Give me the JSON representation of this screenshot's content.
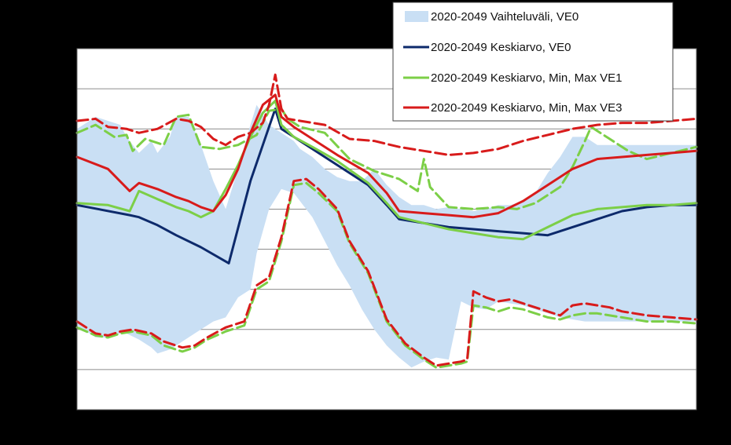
{
  "chart_data": {
    "type": "line",
    "title": "",
    "xlabel": "",
    "ylabel": "",
    "x_range": [
      0,
      100
    ],
    "ylim": [
      0,
      9
    ],
    "yticks": [
      0,
      1,
      2,
      3,
      4,
      5,
      6,
      7,
      8,
      9
    ],
    "grid": "horizontal",
    "legend_position": "top-right",
    "band": {
      "name": "2020-2049 Vaihteluväli, VE0",
      "color": "#c9dff4",
      "x": [
        0,
        3,
        5,
        7,
        8,
        10,
        12,
        13,
        15,
        16,
        18,
        20,
        22,
        24,
        26,
        28,
        29,
        31,
        33,
        35,
        36,
        38,
        40,
        42,
        44,
        46,
        48,
        50,
        52,
        54,
        56,
        58,
        60,
        62,
        64,
        66,
        68,
        70,
        72,
        74,
        76,
        78,
        80,
        82,
        84,
        86,
        88,
        90,
        92,
        94,
        96,
        98,
        100
      ],
      "upper": [
        7.0,
        7.3,
        7.2,
        7.1,
        6.8,
        6.4,
        6.7,
        6.4,
        6.8,
        7.3,
        7.3,
        6.6,
        5.7,
        5.0,
        6.0,
        7.1,
        7.6,
        7.1,
        6.9,
        6.7,
        6.5,
        6.3,
        6.0,
        5.8,
        5.7,
        5.7,
        6.0,
        5.6,
        5.3,
        5.1,
        5.1,
        5.0,
        5.05,
        5.0,
        4.95,
        5.0,
        5.1,
        5.1,
        5.2,
        5.4,
        5.9,
        6.3,
        6.8,
        6.8,
        6.6,
        6.6,
        6.6,
        6.6,
        6.6,
        6.6,
        6.6,
        6.6,
        6.6
      ],
      "lower": [
        2.1,
        1.8,
        1.8,
        1.9,
        1.9,
        1.75,
        1.55,
        1.4,
        1.5,
        1.6,
        1.8,
        2.0,
        2.2,
        2.3,
        2.8,
        3.0,
        3.9,
        5.0,
        5.5,
        5.4,
        5.2,
        4.8,
        4.2,
        3.6,
        3.1,
        2.5,
        2.0,
        1.6,
        1.3,
        1.05,
        1.2,
        1.3,
        1.25,
        2.7,
        2.55,
        2.5,
        2.7,
        2.65,
        2.6,
        2.5,
        2.4,
        2.3,
        2.25,
        2.2,
        2.2,
        2.2,
        2.2,
        2.2,
        2.2,
        2.2,
        2.2,
        2.2,
        2.2
      ]
    },
    "series": [
      {
        "name": "2020-2049 Keskiarvo, VE0",
        "color": "#0d2a6b",
        "width": 3,
        "dash": "",
        "x": [
          0,
          8.5,
          10,
          13,
          16,
          20,
          24.5,
          28,
          30,
          32,
          33,
          35,
          38,
          42,
          47,
          50,
          52,
          56,
          60,
          64,
          68,
          72,
          76,
          80,
          84,
          88,
          92,
          96,
          100
        ],
        "y": [
          5.1,
          4.85,
          4.8,
          4.6,
          4.35,
          4.05,
          3.65,
          5.7,
          6.6,
          7.5,
          7.0,
          6.8,
          6.5,
          6.1,
          5.6,
          5.1,
          4.75,
          4.65,
          4.55,
          4.5,
          4.45,
          4.4,
          4.35,
          4.55,
          4.75,
          4.95,
          5.05,
          5.1,
          5.1
        ]
      },
      {
        "name": "2020-2049 Keskiarvo, Min, Max VE1",
        "color": "#7ccf47",
        "width": 3,
        "dash": "",
        "x": [
          0,
          5,
          8.5,
          10,
          13,
          16,
          18,
          20,
          22,
          24,
          26,
          28,
          30,
          32,
          33,
          35,
          38,
          42,
          47,
          50,
          52,
          56,
          60,
          64,
          68,
          72,
          76,
          80,
          84,
          88,
          92,
          96,
          100
        ],
        "y": [
          5.15,
          5.1,
          4.95,
          5.45,
          5.25,
          5.05,
          4.95,
          4.8,
          4.95,
          5.5,
          6.1,
          6.8,
          7.4,
          7.7,
          7.1,
          6.8,
          6.55,
          6.2,
          5.65,
          5.15,
          4.8,
          4.65,
          4.5,
          4.4,
          4.3,
          4.25,
          4.55,
          4.85,
          5.0,
          5.05,
          5.1,
          5.1,
          5.15
        ]
      },
      {
        "name": "2020-2049 Keskiarvo, Min, Max VE1 (max)",
        "color": "#7ccf47",
        "width": 3,
        "dash": "14,6",
        "x": [
          0,
          3,
          6,
          8,
          9,
          11,
          14,
          16,
          18,
          20,
          23,
          26,
          29,
          31,
          33,
          34,
          36,
          40,
          44,
          48,
          52,
          55,
          56,
          57,
          60,
          64,
          68,
          71,
          74,
          78,
          80,
          82,
          83,
          86,
          89,
          92,
          96,
          100
        ],
        "y": [
          6.9,
          7.1,
          6.8,
          6.85,
          6.45,
          6.75,
          6.6,
          7.3,
          7.35,
          6.55,
          6.5,
          6.6,
          6.85,
          7.45,
          7.5,
          7.25,
          7.05,
          6.9,
          6.25,
          5.95,
          5.75,
          5.45,
          6.25,
          5.55,
          5.05,
          5.0,
          5.05,
          5.0,
          5.15,
          5.55,
          6.05,
          6.7,
          7.05,
          6.75,
          6.45,
          6.25,
          6.4,
          6.55
        ]
      },
      {
        "name": "2020-2049 Keskiarvo, Min, Max VE1 (min)",
        "color": "#7ccf47",
        "width": 3,
        "dash": "14,6",
        "x": [
          0,
          3,
          5,
          7,
          9,
          12,
          14,
          17,
          19,
          21,
          24,
          27,
          29,
          31,
          33,
          35,
          37,
          39,
          42,
          44,
          47,
          50,
          53,
          56,
          58,
          60,
          62,
          63,
          64,
          66,
          68,
          70,
          72,
          74,
          76,
          78,
          80,
          82,
          84,
          86,
          88,
          90,
          92,
          96,
          100
        ],
        "y": [
          2.05,
          1.85,
          1.8,
          1.9,
          1.95,
          1.85,
          1.6,
          1.45,
          1.55,
          1.75,
          1.95,
          2.1,
          3.0,
          3.2,
          4.2,
          5.6,
          5.65,
          5.4,
          4.95,
          4.15,
          3.4,
          2.2,
          1.6,
          1.25,
          1.05,
          1.1,
          1.15,
          1.2,
          2.6,
          2.55,
          2.45,
          2.55,
          2.5,
          2.4,
          2.3,
          2.25,
          2.35,
          2.4,
          2.4,
          2.35,
          2.3,
          2.25,
          2.2,
          2.2,
          2.15
        ]
      },
      {
        "name": "2020-2049 Keskiarvo, Min, Max VE3",
        "color": "#d81b1b",
        "width": 3,
        "dash": "",
        "x": [
          0,
          5,
          8.5,
          10,
          13,
          16,
          18,
          20,
          22,
          24,
          26,
          28,
          30,
          32,
          33,
          35,
          38,
          42,
          47,
          50,
          52,
          56,
          60,
          64,
          68,
          72,
          76,
          80,
          84,
          88,
          92,
          96,
          100
        ],
        "y": [
          6.3,
          6.0,
          5.45,
          5.65,
          5.5,
          5.3,
          5.2,
          5.05,
          4.95,
          5.35,
          6.0,
          6.9,
          7.6,
          7.85,
          7.3,
          7.05,
          6.75,
          6.35,
          5.9,
          5.4,
          4.95,
          4.9,
          4.85,
          4.8,
          4.9,
          5.2,
          5.6,
          6.0,
          6.25,
          6.3,
          6.35,
          6.4,
          6.45
        ]
      },
      {
        "name": "2020-2049 Keskiarvo, Min, Max VE3 (max)",
        "color": "#d81b1b",
        "width": 3,
        "dash": "14,6",
        "x": [
          0,
          3,
          5,
          8,
          10,
          13,
          16,
          18,
          20,
          22,
          24,
          26,
          28,
          30,
          31,
          32,
          33,
          34,
          36,
          40,
          44,
          48,
          52,
          56,
          60,
          64,
          68,
          72,
          76,
          80,
          84,
          88,
          92,
          96,
          100
        ],
        "y": [
          7.2,
          7.25,
          7.05,
          7.0,
          6.9,
          7.0,
          7.25,
          7.2,
          7.05,
          6.75,
          6.6,
          6.8,
          6.9,
          7.15,
          7.6,
          8.35,
          7.5,
          7.25,
          7.2,
          7.1,
          6.75,
          6.7,
          6.55,
          6.45,
          6.35,
          6.4,
          6.5,
          6.7,
          6.85,
          7.0,
          7.1,
          7.15,
          7.15,
          7.2,
          7.25
        ]
      },
      {
        "name": "2020-2049 Keskiarvo, Min, Max VE3 (min)",
        "color": "#d81b1b",
        "width": 3,
        "dash": "14,6",
        "x": [
          0,
          3,
          5,
          7,
          9,
          12,
          14,
          17,
          19,
          21,
          24,
          27,
          29,
          31,
          33,
          35,
          37,
          39,
          42,
          44,
          47,
          50,
          53,
          56,
          58,
          60,
          62,
          63,
          64,
          66,
          68,
          70,
          72,
          74,
          76,
          78,
          80,
          82,
          84,
          86,
          88,
          90,
          92,
          96,
          100
        ],
        "y": [
          2.2,
          1.9,
          1.85,
          1.95,
          2.0,
          1.9,
          1.7,
          1.55,
          1.6,
          1.8,
          2.05,
          2.2,
          3.1,
          3.3,
          4.3,
          5.7,
          5.75,
          5.5,
          5.0,
          4.2,
          3.45,
          2.25,
          1.65,
          1.3,
          1.1,
          1.15,
          1.2,
          1.25,
          2.95,
          2.8,
          2.7,
          2.75,
          2.65,
          2.55,
          2.45,
          2.35,
          2.6,
          2.65,
          2.6,
          2.55,
          2.45,
          2.4,
          2.35,
          2.3,
          2.25
        ]
      }
    ],
    "legend": [
      {
        "label": "2020-2049 Vaihteluväli, VE0",
        "kind": "area",
        "color": "#c9dff4"
      },
      {
        "label": "2020-2049 Keskiarvo, VE0",
        "kind": "line",
        "color": "#0d2a6b"
      },
      {
        "label": "2020-2049 Keskiarvo, Min, Max VE1",
        "kind": "line",
        "color": "#7ccf47"
      },
      {
        "label": "2020-2049 Keskiarvo, Min, Max VE3",
        "kind": "line",
        "color": "#d81b1b"
      }
    ]
  }
}
